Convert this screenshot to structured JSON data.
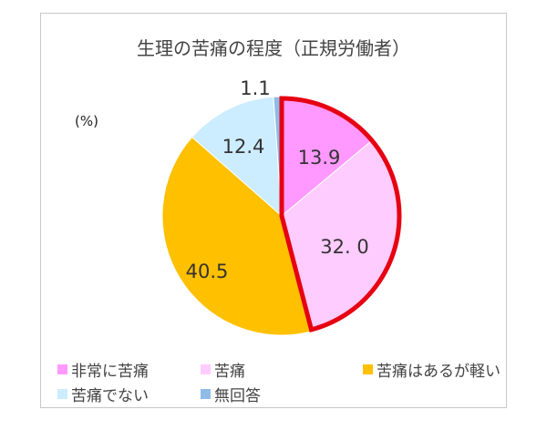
{
  "chart_data": {
    "type": "pie",
    "title": "生理の苦痛の程度（正規労働者）",
    "unit_label": "(%)",
    "slices": [
      {
        "label": "非常に苦痛",
        "value": 13.9,
        "display": "13.9",
        "color": "#ff99ff"
      },
      {
        "label": "苦痛",
        "value": 32.0,
        "display": "32. 0",
        "color": "#ffccff"
      },
      {
        "label": "苦痛はあるが軽い",
        "value": 40.5,
        "display": "40.5",
        "color": "#ffc000"
      },
      {
        "label": "苦痛でない",
        "value": 12.4,
        "display": "12.4",
        "color": "#ccecff"
      },
      {
        "label": "無回答",
        "value": 1.1,
        "display": "1.1",
        "color": "#8fbce6"
      }
    ],
    "highlight": {
      "slices": [
        "非常に苦痛",
        "苦痛"
      ],
      "color": "#e60012"
    },
    "legend_position": "bottom"
  }
}
